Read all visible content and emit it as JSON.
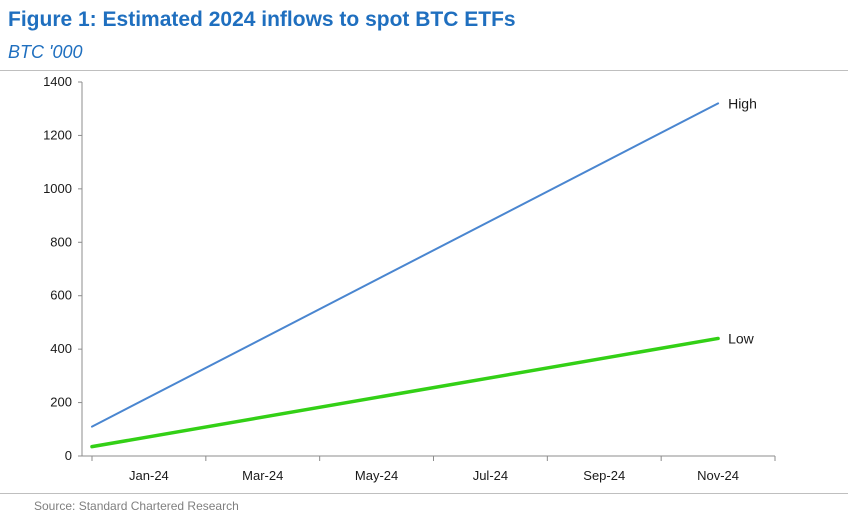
{
  "header": {
    "title": "Figure 1: Estimated 2024 inflows to spot BTC ETFs",
    "subtitle": "BTC '000"
  },
  "footer": {
    "source": "Source: Standard Chartered Research"
  },
  "colors": {
    "title": "#1f6fbf",
    "high_series": "#4a86d0",
    "low_series": "#33d016",
    "axis": "#8c8c8c"
  },
  "chart_data": {
    "type": "line",
    "title": "Figure 1: Estimated 2024 inflows to spot BTC ETFs",
    "subtitle": "BTC '000",
    "xlabel": "",
    "ylabel": "",
    "x_tick_labels": [
      "Jan-24",
      "Mar-24",
      "May-24",
      "Jul-24",
      "Sep-24",
      "Nov-24"
    ],
    "y_ticks": [
      0,
      200,
      400,
      600,
      800,
      1000,
      1200,
      1400
    ],
    "ylim": [
      0,
      1400
    ],
    "xlim": [
      "Jan-24",
      "Jan-25"
    ],
    "grid": false,
    "legend": "labels at line ends (right)",
    "series": [
      {
        "name": "High",
        "x": [
          "Jan-24",
          "Dec-24"
        ],
        "values": [
          110,
          1320
        ]
      },
      {
        "name": "Low",
        "x": [
          "Jan-24",
          "Dec-24"
        ],
        "values": [
          35,
          440
        ]
      }
    ]
  }
}
